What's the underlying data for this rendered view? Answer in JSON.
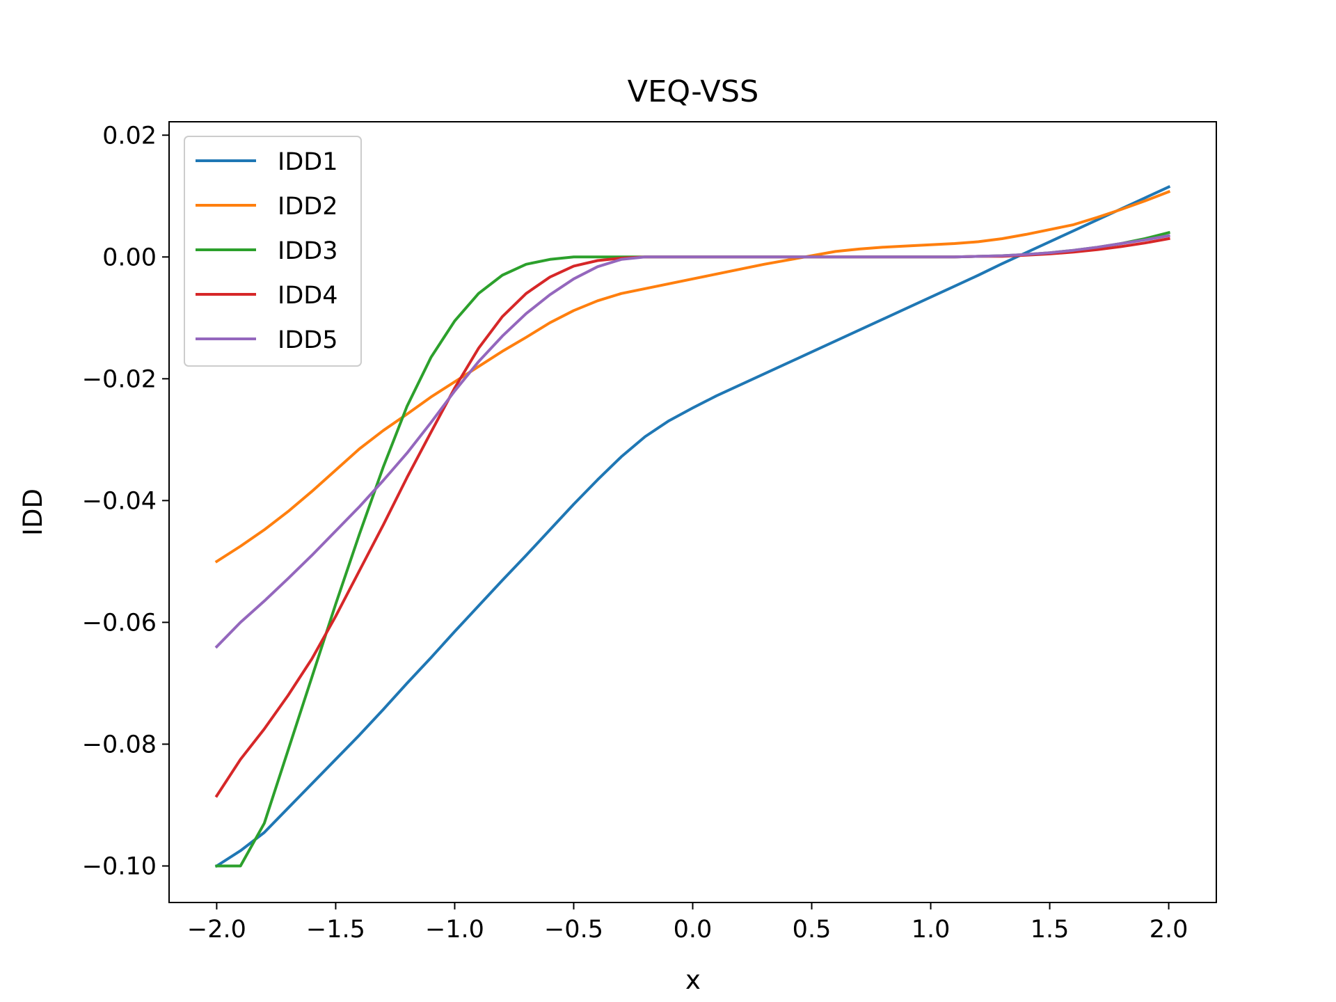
{
  "chart_data": {
    "type": "line",
    "title": "VEQ-VSS",
    "xlabel": "x",
    "ylabel": "IDD",
    "xlim": [
      -2.2,
      2.2
    ],
    "ylim": [
      -0.106,
      0.0222
    ],
    "xticks": [
      -2.0,
      -1.5,
      -1.0,
      -0.5,
      0.0,
      0.5,
      1.0,
      1.5,
      2.0
    ],
    "xtick_labels": [
      "−2.0",
      "−1.5",
      "−1.0",
      "−0.5",
      "0.0",
      "0.5",
      "1.0",
      "1.5",
      "2.0"
    ],
    "yticks": [
      0.02,
      0.0,
      -0.02,
      -0.04,
      -0.06,
      -0.08,
      -0.1
    ],
    "ytick_labels": [
      "0.02",
      "0.00",
      "−0.02",
      "−0.04",
      "−0.06",
      "−0.08",
      "−0.10"
    ],
    "grid": false,
    "legend_position": "upper-left",
    "x": [
      -2.0,
      -1.9,
      -1.8,
      -1.7,
      -1.6,
      -1.5,
      -1.4,
      -1.3,
      -1.2,
      -1.1,
      -1.0,
      -0.9,
      -0.8,
      -0.7,
      -0.6,
      -0.5,
      -0.4,
      -0.3,
      -0.2,
      -0.1,
      0.0,
      0.1,
      0.2,
      0.3,
      0.4,
      0.5,
      0.6,
      0.7,
      0.8,
      0.9,
      1.0,
      1.1,
      1.2,
      1.3,
      1.4,
      1.5,
      1.6,
      1.7,
      1.8,
      1.9,
      2.0
    ],
    "series": [
      {
        "name": "IDD1",
        "color": "#1f77b4",
        "values": [
          -0.1,
          -0.0975,
          -0.0945,
          -0.0905,
          -0.0865,
          -0.0825,
          -0.0785,
          -0.0743,
          -0.07,
          -0.0658,
          -0.0615,
          -0.0573,
          -0.0531,
          -0.049,
          -0.0448,
          -0.0406,
          -0.0366,
          -0.0328,
          -0.0295,
          -0.0269,
          -0.0248,
          -0.0228,
          -0.021,
          -0.0192,
          -0.0174,
          -0.0156,
          -0.0138,
          -0.012,
          -0.0102,
          -0.0084,
          -0.0066,
          -0.0048,
          -0.003,
          -0.0011,
          0.0007,
          0.0025,
          0.0043,
          0.0061,
          0.0079,
          0.0097,
          0.0115
        ]
      },
      {
        "name": "IDD2",
        "color": "#ff7f0e",
        "values": [
          -0.05,
          -0.0475,
          -0.0448,
          -0.0418,
          -0.0385,
          -0.035,
          -0.0315,
          -0.0285,
          -0.0258,
          -0.023,
          -0.0205,
          -0.018,
          -0.0155,
          -0.0132,
          -0.0108,
          -0.0088,
          -0.0072,
          -0.006,
          -0.0052,
          -0.0044,
          -0.0036,
          -0.0028,
          -0.002,
          -0.0012,
          -0.0005,
          0.0002,
          0.0009,
          0.0013,
          0.0016,
          0.0018,
          0.002,
          0.0022,
          0.0025,
          0.003,
          0.0037,
          0.0045,
          0.0053,
          0.0065,
          0.0078,
          0.0092,
          0.0107
        ]
      },
      {
        "name": "IDD3",
        "color": "#2ca02c",
        "values": [
          -0.1,
          -0.1,
          -0.093,
          -0.081,
          -0.069,
          -0.057,
          -0.0455,
          -0.0345,
          -0.0245,
          -0.0165,
          -0.0105,
          -0.006,
          -0.003,
          -0.0012,
          -0.0004,
          0.0,
          0.0,
          0.0,
          0.0,
          0.0,
          0.0,
          0.0,
          0.0,
          0.0,
          0.0,
          0.0,
          0.0,
          0.0,
          0.0,
          0.0,
          0.0,
          0.0,
          0.0001,
          0.0002,
          0.0004,
          0.0007,
          0.0011,
          0.0016,
          0.0022,
          0.003,
          0.004
        ]
      },
      {
        "name": "IDD4",
        "color": "#d62728",
        "values": [
          -0.0885,
          -0.0825,
          -0.0775,
          -0.072,
          -0.066,
          -0.059,
          -0.0515,
          -0.044,
          -0.0362,
          -0.0288,
          -0.0215,
          -0.015,
          -0.0098,
          -0.006,
          -0.0033,
          -0.0015,
          -0.0006,
          -0.0002,
          0.0,
          0.0,
          0.0,
          0.0,
          0.0,
          0.0,
          0.0,
          0.0,
          0.0,
          0.0,
          0.0,
          0.0,
          0.0,
          0.0,
          0.0001,
          0.0001,
          0.0003,
          0.0005,
          0.0008,
          0.0012,
          0.0017,
          0.0023,
          0.003
        ]
      },
      {
        "name": "IDD5",
        "color": "#9467bd",
        "values": [
          -0.064,
          -0.06,
          -0.0565,
          -0.0528,
          -0.049,
          -0.045,
          -0.041,
          -0.0367,
          -0.0322,
          -0.0272,
          -0.022,
          -0.0172,
          -0.013,
          -0.0093,
          -0.0062,
          -0.0036,
          -0.0016,
          -0.0004,
          0.0,
          0.0,
          0.0,
          0.0,
          0.0,
          0.0,
          0.0,
          0.0,
          0.0,
          0.0,
          0.0,
          0.0,
          0.0,
          0.0,
          0.0001,
          0.0002,
          0.0004,
          0.0007,
          0.0011,
          0.0016,
          0.0022,
          0.0028,
          0.0035
        ]
      }
    ]
  }
}
